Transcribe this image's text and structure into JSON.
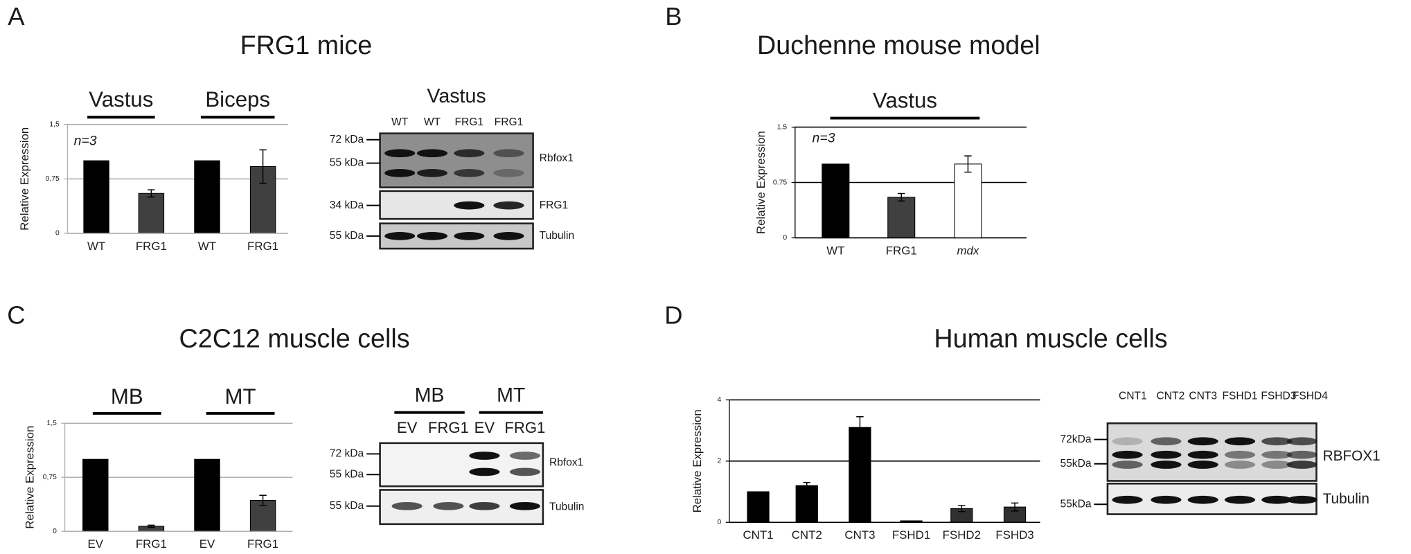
{
  "panels": [
    {
      "letter": "A",
      "title": "FRG1 mice"
    },
    {
      "letter": "B",
      "title": "Duchenne mouse model"
    },
    {
      "letter": "C",
      "title": "C2C12 muscle cells"
    },
    {
      "letter": "D",
      "title": "Human muscle cells"
    }
  ],
  "chart_data": [
    {
      "type": "bar",
      "ylabel": "Relative Expression",
      "annotation": "n=3",
      "groups": [
        "Vastus",
        "Biceps"
      ],
      "categories": [
        "WT",
        "FRG1",
        "WT",
        "FRG1"
      ],
      "values": [
        1,
        0.55,
        1,
        0.92
      ],
      "errors": [
        null,
        0.05,
        null,
        0.23
      ],
      "colors": [
        "#000000",
        "#404040",
        "#000000",
        "#404040"
      ],
      "ylim": [
        0,
        1.5
      ],
      "yticks": [
        0,
        {
          "value": 0.75,
          "label": "0,75"
        },
        {
          "value": 1.5,
          "label": "1,5"
        }
      ],
      "grid": true,
      "grid_color": "#b0b0b0"
    },
    {
      "type": "bar",
      "ylabel": "Relative Expression",
      "annotation": "n=3",
      "groups": [
        "Vastus"
      ],
      "categories": [
        "WT",
        "FRG1",
        "mdx"
      ],
      "values": [
        1,
        0.55,
        1.0
      ],
      "errors": [
        null,
        0.05,
        0.11
      ],
      "colors": [
        "#000000",
        "#404040",
        "#ffffff"
      ],
      "ylim": [
        0,
        1.5
      ],
      "yticks": [
        0,
        0.75,
        1.5
      ],
      "grid": true,
      "grid_color": "#000000"
    },
    {
      "type": "bar",
      "ylabel": "Relative Expression",
      "groups": [
        "MB",
        "MT"
      ],
      "categories": [
        "EV",
        "FRG1",
        "EV",
        "FRG1"
      ],
      "values": [
        1,
        0.07,
        1,
        0.43
      ],
      "errors": [
        null,
        0.015,
        null,
        0.07
      ],
      "colors": [
        "#000000",
        "#404040",
        "#000000",
        "#404040"
      ],
      "ylim": [
        0,
        1.5
      ],
      "yticks": [
        0,
        {
          "value": 0.75,
          "label": "0,75"
        },
        {
          "value": 1.5,
          "label": "1,5"
        }
      ],
      "grid": true,
      "grid_color": "#b0b0b0"
    },
    {
      "type": "bar",
      "ylabel": "Relative Expression",
      "categories": [
        "CNT1",
        "CNT2",
        "CNT3",
        "FSHD1",
        "FSHD2",
        "FSHD3"
      ],
      "values": [
        1,
        1.2,
        3.1,
        0.05,
        0.45,
        0.5
      ],
      "errors": [
        null,
        0.1,
        0.35,
        null,
        0.1,
        0.13
      ],
      "colors": [
        "#000000",
        "#000000",
        "#000000",
        "#000000",
        "#303030",
        "#303030"
      ],
      "ylim": [
        0,
        4
      ],
      "yticks": [
        0,
        2,
        4
      ],
      "grid": true,
      "grid_color": "#000000"
    }
  ],
  "blots": [
    {
      "header": "Vastus",
      "lanes": [
        "WT",
        "WT",
        "FRG1",
        "FRG1"
      ],
      "rows": [
        {
          "label": "Rbfox1",
          "markers": [
            "72 kDa",
            "55 kDa"
          ]
        },
        {
          "label": "FRG1",
          "markers": [
            "34 kDa"
          ]
        },
        {
          "label": "Tubulin",
          "markers": [
            "55 kDa"
          ]
        }
      ]
    },
    {
      "groups": [
        "MB",
        "MT"
      ],
      "lanes": [
        "EV",
        "FRG1",
        "EV",
        "FRG1"
      ],
      "rows": [
        {
          "label": "Rbfox1",
          "markers": [
            "72 kDa",
            "55 kDa"
          ]
        },
        {
          "label": "Tubulin",
          "markers": [
            "55 kDa"
          ]
        }
      ]
    },
    {
      "lanes": [
        "CNT1",
        "CNT2",
        "CNT3",
        "FSHD1",
        "FSHD3",
        "FSHD4"
      ],
      "rows": [
        {
          "label": "RBFOX1",
          "markers": [
            "72kDa",
            "55kDa"
          ]
        },
        {
          "label": "Tubulin",
          "markers": [
            "55kDa"
          ]
        }
      ]
    }
  ]
}
